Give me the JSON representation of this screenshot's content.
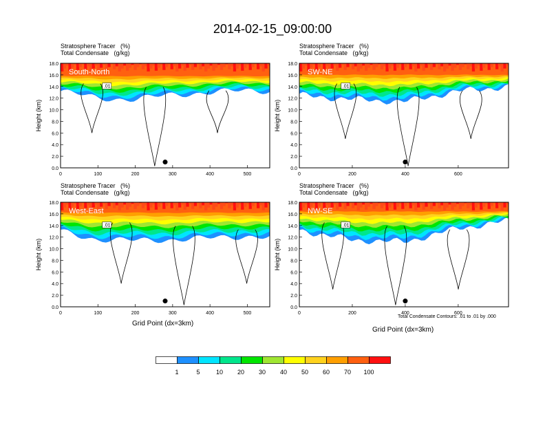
{
  "title": "2014-02-15_09:00:00",
  "panel_title_line1": "Stratosphere Tracer   (%)",
  "panel_title_line2": "Total Condensate   (g/kg)",
  "xlabel": "Grid Point (dx=3km)",
  "contour_note": "Total Condensate Contours: .01 to .01 by .000",
  "colorbar": {
    "colors": [
      "#ffffff",
      "#1e90ff",
      "#00e5ff",
      "#00e68c",
      "#00e600",
      "#a0e632",
      "#ffff00",
      "#ffd21e",
      "#ff9f00",
      "#ff6010",
      "#ff1010"
    ],
    "labels": [
      "1",
      "5",
      "10",
      "20",
      "30",
      "40",
      "50",
      "60",
      "70",
      "100"
    ]
  },
  "chart_data": [
    {
      "type": "heatmap",
      "name": "South-North",
      "ylabel": "Height (km)",
      "xlim": [
        0,
        560
      ],
      "ylim": [
        0,
        18
      ],
      "x_ticks": [
        "0",
        "100",
        "200",
        "300",
        "400",
        "500"
      ],
      "y_ticks": [
        "0.0",
        "2.0",
        "4.0",
        "6.0",
        "8.0",
        "10.0",
        "12.0",
        "14.0",
        "16.0",
        "18.0"
      ],
      "marker_x": 280,
      "contour_label": ".01",
      "tracer_layer": {
        "x": [
          0,
          100,
          200,
          300,
          400,
          500,
          560
        ],
        "blue_base_km": [
          13.2,
          12.0,
          11.8,
          12.6,
          13.0,
          13.3,
          13.3
        ],
        "red_base_km": 15.8
      }
    },
    {
      "type": "heatmap",
      "name": "SW-NE",
      "ylabel": "Height (km)",
      "xlim": [
        0,
        790
      ],
      "ylim": [
        0,
        18
      ],
      "x_ticks": [
        "0",
        "200",
        "400",
        "600"
      ],
      "y_ticks": [
        "0.0",
        "2.0",
        "4.0",
        "6.0",
        "8.0",
        "10.0",
        "12.0",
        "14.0",
        "16.0",
        "18.0"
      ],
      "marker_x": 400,
      "contour_label": ".01",
      "tracer_layer": {
        "x": [
          0,
          200,
          400,
          600,
          790
        ],
        "blue_base_km": [
          12.5,
          11.8,
          11.4,
          13.2,
          14.0
        ],
        "red_base_km": 16.0
      }
    },
    {
      "type": "heatmap",
      "name": "West-East",
      "ylabel": "Height (km)",
      "xlim": [
        0,
        560
      ],
      "ylim": [
        0,
        18
      ],
      "x_ticks": [
        "0",
        "100",
        "200",
        "300",
        "400",
        "500"
      ],
      "y_ticks": [
        "0.0",
        "2.0",
        "4.0",
        "6.0",
        "8.0",
        "10.0",
        "12.0",
        "14.0",
        "16.0",
        "18.0"
      ],
      "marker_x": 280,
      "contour_label": ".01",
      "tracer_layer": {
        "x": [
          0,
          100,
          200,
          300,
          400,
          500,
          560
        ],
        "blue_base_km": [
          13.0,
          11.6,
          11.4,
          11.6,
          11.8,
          12.2,
          12.0
        ],
        "red_base_km": 16.2
      }
    },
    {
      "type": "heatmap",
      "name": "NW-SE",
      "ylabel": "Height (km)",
      "xlim": [
        0,
        790
      ],
      "ylim": [
        0,
        18
      ],
      "x_ticks": [
        "0",
        "200",
        "400",
        "600"
      ],
      "y_ticks": [
        "0.0",
        "2.0",
        "4.0",
        "6.0",
        "8.0",
        "10.0",
        "12.0",
        "14.0",
        "16.0",
        "18.0"
      ],
      "marker_x": 400,
      "contour_label": ".01",
      "tracer_layer": {
        "x": [
          0,
          200,
          400,
          600,
          790
        ],
        "blue_base_km": [
          13.2,
          11.5,
          11.2,
          13.5,
          14.8
        ],
        "red_base_km": 16.4
      }
    }
  ]
}
